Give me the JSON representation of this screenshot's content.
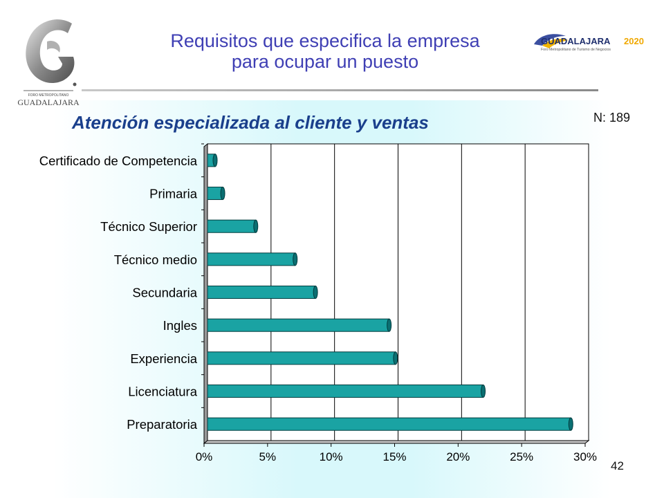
{
  "header": {
    "title_line1": "Requisitos que especifica la empresa",
    "title_line2": "para ocupar un puesto",
    "left_logo_text": "GUADALAJARA",
    "left_logo_small": "FORO METROPOLITANO",
    "right_logo_text": "GUADALAJARA",
    "right_logo_year": "2020",
    "right_logo_tagline": "Foro Metropolitano de Turismo de Negocios"
  },
  "sample_size": "N: 189",
  "page_number": "42",
  "colors": {
    "title": "#3f3fb4",
    "subtitle": "#1a3f8c",
    "bar": "#1aa3a3",
    "bar_dark": "#0b6f72"
  },
  "chart_data": {
    "type": "bar",
    "orientation": "horizontal",
    "title": "Atención especializada al cliente y ventas",
    "categories": [
      "Certificado de Competencia",
      "Primaria",
      "Técnico Superior",
      "Técnico medio",
      "Secundaria",
      "Ingles",
      "Experiencia",
      "Licenciatura",
      "Preparatoria"
    ],
    "values": [
      0.6,
      1.2,
      3.8,
      6.9,
      8.5,
      14.3,
      14.8,
      21.7,
      28.6
    ],
    "xlim": [
      0,
      30
    ],
    "xticks": [
      "0%",
      "5%",
      "10%",
      "15%",
      "20%",
      "25%",
      "30%"
    ],
    "grid": true
  }
}
